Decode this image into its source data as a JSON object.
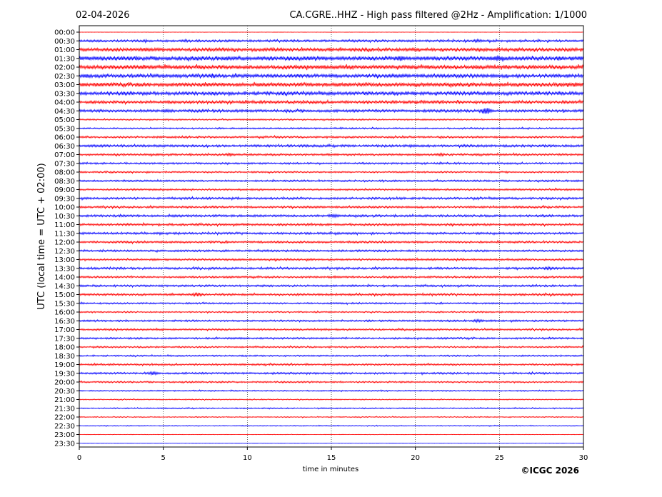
{
  "header": {
    "date": "02-04-2026",
    "title": "CA.CGRE..HHZ - High pass filtered @2Hz - Amplification: 1/1000"
  },
  "copyright": "©ICGC 2026",
  "colors": {
    "odd": "#ff0000",
    "even": "#0000ff",
    "grid": "#000000"
  },
  "chart_data": {
    "type": "line",
    "xlabel": "time in minutes",
    "ylabel": "UTC (local time = UTC + 02:00)",
    "xlim": [
      0,
      30
    ],
    "xticks": [
      "0",
      "5",
      "10",
      "15",
      "20",
      "25",
      "30"
    ],
    "grid": true,
    "rows": [
      "00:00",
      "00:30",
      "01:00",
      "01:30",
      "02:00",
      "02:30",
      "03:00",
      "03:30",
      "04:00",
      "04:30",
      "05:00",
      "05:30",
      "06:00",
      "06:30",
      "07:00",
      "07:30",
      "08:00",
      "08:30",
      "09:00",
      "09:30",
      "10:00",
      "10:30",
      "11:00",
      "11:30",
      "12:00",
      "12:30",
      "13:00",
      "13:30",
      "14:00",
      "14:30",
      "15:00",
      "15:30",
      "16:00",
      "16:30",
      "17:00",
      "17:30",
      "18:00",
      "18:30",
      "19:00",
      "19:30",
      "20:00",
      "20:30",
      "21:00",
      "21:30",
      "22:00",
      "22:30",
      "23:00",
      "23:30"
    ],
    "amplitude": [
      0.12,
      1.5,
      2.2,
      2.8,
      2.6,
      2.4,
      2.6,
      2.3,
      1.9,
      1.8,
      1.0,
      1.0,
      1.3,
      1.6,
      1.4,
      1.2,
      1.1,
      1.2,
      1.2,
      1.4,
      1.4,
      1.5,
      1.5,
      1.4,
      1.4,
      1.3,
      1.3,
      1.4,
      1.3,
      1.3,
      1.4,
      1.1,
      1.0,
      1.2,
      1.2,
      1.2,
      1.1,
      1.0,
      1.2,
      1.3,
      1.1,
      0.8,
      0.7,
      0.8,
      0.7,
      0.6,
      0.3,
      0.12
    ],
    "events": [
      {
        "row": 1,
        "minute": 6.3,
        "amp": 2.0
      },
      {
        "row": 1,
        "minute": 23.7,
        "amp": 2.5
      },
      {
        "row": 2,
        "minute": 4.0,
        "amp": 3.0
      },
      {
        "row": 2,
        "minute": 23.8,
        "amp": 2.5
      },
      {
        "row": 3,
        "minute": 2.9,
        "amp": 2.6
      },
      {
        "row": 3,
        "minute": 15.8,
        "amp": 2.5
      },
      {
        "row": 3,
        "minute": 19.1,
        "amp": 4.0
      },
      {
        "row": 3,
        "minute": 24.9,
        "amp": 4.5
      },
      {
        "row": 4,
        "minute": 3.8,
        "amp": 3.5
      },
      {
        "row": 4,
        "minute": 20.8,
        "amp": 3.0
      },
      {
        "row": 5,
        "minute": 0.5,
        "amp": 3.0
      },
      {
        "row": 5,
        "minute": 7.9,
        "amp": 3.5
      },
      {
        "row": 6,
        "minute": 29.5,
        "amp": 3.5
      },
      {
        "row": 9,
        "minute": 5.2,
        "amp": 2.8
      },
      {
        "row": 9,
        "minute": 24.2,
        "amp": 5.5
      },
      {
        "row": 14,
        "minute": 8.9,
        "amp": 2.4
      },
      {
        "row": 14,
        "minute": 21.5,
        "amp": 2.4
      },
      {
        "row": 21,
        "minute": 15.2,
        "amp": 2.5
      },
      {
        "row": 27,
        "minute": 27.9,
        "amp": 2.5
      },
      {
        "row": 30,
        "minute": 7.0,
        "amp": 3.0
      },
      {
        "row": 33,
        "minute": 23.7,
        "amp": 2.4
      },
      {
        "row": 39,
        "minute": 4.4,
        "amp": 2.6
      }
    ]
  }
}
